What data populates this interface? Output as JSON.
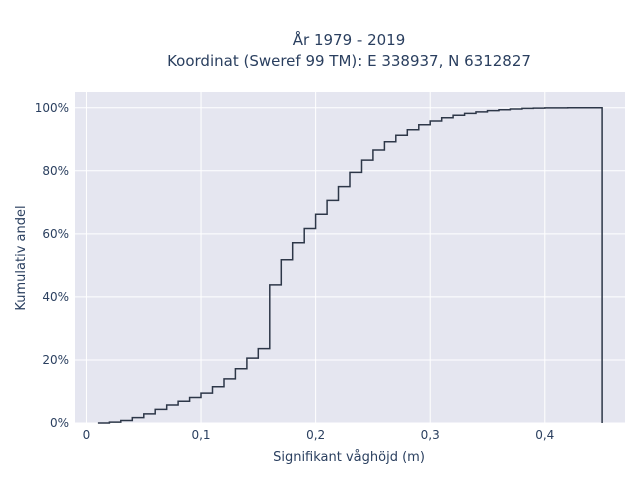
{
  "chart_data": {
    "type": "line",
    "title_line1": "År 1979 - 2019",
    "title_line2": "Koordinat (Sweref 99 TM): E 338937, N 6312827",
    "xlabel": "Signifikant våghöjd (m)",
    "ylabel": "Kumulativ andel",
    "xlim": [
      -0.01,
      0.47
    ],
    "ylim": [
      0,
      1.05
    ],
    "xticks": [
      0,
      0.1,
      0.2,
      0.3,
      0.4
    ],
    "xtick_labels": [
      "0",
      "0,1",
      "0,2",
      "0,3",
      "0,4"
    ],
    "yticks": [
      0,
      0.2,
      0.4,
      0.6,
      0.8,
      1.0
    ],
    "ytick_labels": [
      "0%",
      "20%",
      "40%",
      "60%",
      "80%",
      "100%"
    ],
    "grid": true,
    "plot_bg": "#e5e6f0",
    "grid_color": "#ffffff",
    "line_color": "#2d3748",
    "series": [
      {
        "x": [
          0.01,
          0.02,
          0.03,
          0.04,
          0.05,
          0.06,
          0.07,
          0.08,
          0.09,
          0.1,
          0.11,
          0.12,
          0.13,
          0.14,
          0.15,
          0.16,
          0.17,
          0.18,
          0.19,
          0.2,
          0.21,
          0.22,
          0.23,
          0.24,
          0.25,
          0.26,
          0.27,
          0.28,
          0.29,
          0.3,
          0.31,
          0.32,
          0.33,
          0.34,
          0.35,
          0.36,
          0.37,
          0.38,
          0.39,
          0.4,
          0.41,
          0.42,
          0.43,
          0.44,
          0.45
        ],
        "y": [
          0.0,
          0.003,
          0.008,
          0.017,
          0.029,
          0.043,
          0.057,
          0.069,
          0.081,
          0.095,
          0.115,
          0.14,
          0.172,
          0.206,
          0.236,
          0.438,
          0.518,
          0.572,
          0.617,
          0.662,
          0.706,
          0.75,
          0.795,
          0.834,
          0.866,
          0.892,
          0.913,
          0.93,
          0.946,
          0.958,
          0.968,
          0.976,
          0.982,
          0.987,
          0.991,
          0.994,
          0.996,
          0.998,
          0.999,
          0.9995,
          0.9997,
          0.9998,
          0.9999,
          1.0,
          0.0
        ]
      }
    ]
  }
}
